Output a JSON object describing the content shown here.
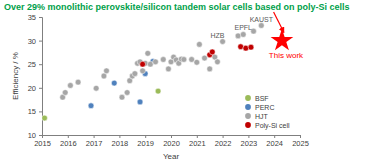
{
  "chart_data": {
    "type": "scatter",
    "title": "Over 29% monolithic perovskite/silicon tandem solar cells based on poly-Si cells",
    "x_label": "Year",
    "y_label": "Efficiency / %",
    "xlim": [
      2015,
      2025
    ],
    "xticks": [
      2015,
      2016,
      2017,
      2018,
      2019,
      2020,
      2021,
      2022,
      2023,
      2024,
      2025
    ],
    "ylim": [
      10,
      35
    ],
    "yticks": [
      10,
      15,
      20,
      25,
      30,
      35
    ],
    "grid": false,
    "legend": "lower right",
    "marker": "circle",
    "series": [
      {
        "name": "BSF",
        "color": "#9bbb59",
        "x": [
          2015.1,
          2019.5
        ],
        "values": [
          13.6,
          19.3
        ]
      },
      {
        "name": "PERC",
        "color": "#4f81bd",
        "x": [
          2016.9,
          2017.8,
          2018.8,
          2019.0,
          2019.3
        ],
        "values": [
          16.2,
          21.0,
          17.0,
          23.0,
          25.6
        ]
      },
      {
        "name": "HJT",
        "color": "#a6a6a6",
        "x": [
          2015.8,
          2015.9,
          2016.1,
          2016.4,
          2017.1,
          2017.4,
          2017.5,
          2018.1,
          2018.3,
          2018.4,
          2018.5,
          2018.6,
          2018.7,
          2018.8,
          2018.9,
          2019.0,
          2019.1,
          2019.2,
          2019.4,
          2019.7,
          2019.9,
          2020.0,
          2020.1,
          2020.2,
          2020.3,
          2020.4,
          2020.5,
          2020.8,
          2021.0,
          2021.1,
          2021.3,
          2021.5,
          2021.7,
          2021.8,
          2022.0,
          2022.6,
          2022.8,
          2023.2,
          2023.5
        ],
        "values": [
          18.0,
          19.0,
          20.5,
          21.2,
          19.9,
          22.5,
          23.6,
          18.0,
          19.0,
          21.5,
          22.5,
          23.0,
          25.2,
          25.5,
          23.6,
          25.2,
          27.3,
          25.0,
          25.5,
          26.0,
          24.0,
          25.5,
          26.5,
          25.9,
          25.2,
          26.1,
          26.0,
          26.0,
          25.4,
          29.2,
          26.3,
          24.0,
          26.5,
          25.5,
          29.8,
          31.0,
          31.3,
          32.0,
          33.2
        ]
      },
      {
        "name": "Poly-Si cell",
        "color": "#c00000",
        "x": [
          2018.9,
          2021.5,
          2021.6,
          2022.7,
          2022.9,
          2023.1
        ],
        "values": [
          25.0,
          27.0,
          27.6,
          28.7,
          28.4,
          28.6
        ]
      }
    ],
    "annotations": [
      {
        "text": "KAUST",
        "x": 2023.5,
        "y": 33.2
      },
      {
        "text": "EPFL",
        "x": 2022.8,
        "y": 31.3
      },
      {
        "text": "HZB",
        "x": 2021.8,
        "y": 29.8
      }
    ],
    "highlight": {
      "label": "This work",
      "x": 2024.3,
      "y": 30.0,
      "color": "#ff0000",
      "marker": "star"
    },
    "title_color": "#00a04a"
  }
}
